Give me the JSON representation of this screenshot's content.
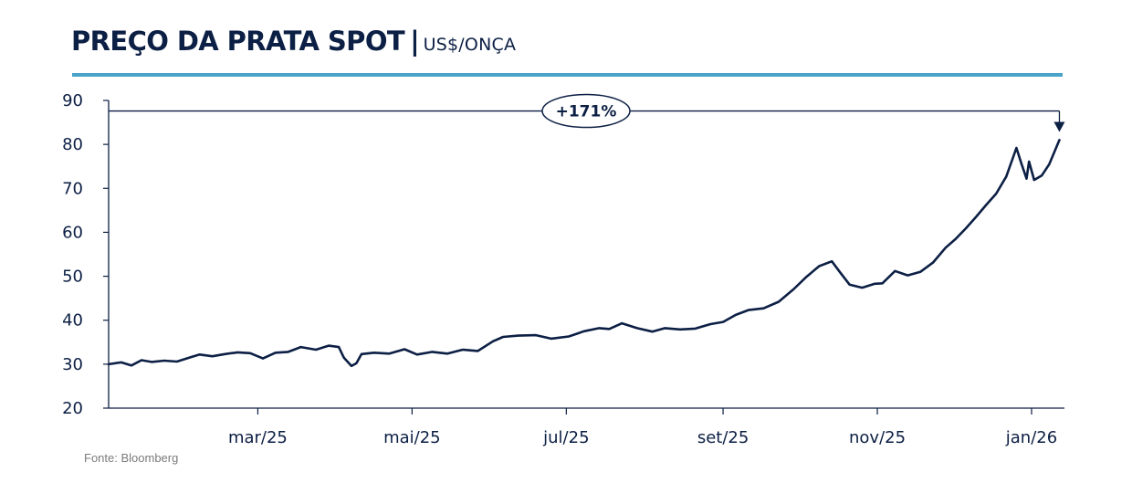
{
  "header": {
    "title": "PREÇO DA PRATA SPOT",
    "separator": "|",
    "subtitle": "US$/ONÇA"
  },
  "source": "Fonte: Bloomberg",
  "colors": {
    "line": "#0c1f44",
    "accent_rule": "#4aa3c9",
    "axis": "#0c1f44"
  },
  "chart_data": {
    "type": "line",
    "title": "PREÇO DA PRATA SPOT",
    "subtitle": "US$/ONÇA",
    "xlabel": "",
    "ylabel": "",
    "ylim": [
      20,
      90
    ],
    "yticks": [
      20,
      30,
      40,
      50,
      60,
      70,
      80,
      90
    ],
    "grid": false,
    "legend": "none",
    "x_range": [
      "2025-01-01",
      "2026-01-14"
    ],
    "xticks": [
      {
        "date": "2025-03-01",
        "label": "mar/25"
      },
      {
        "date": "2025-05-01",
        "label": "mai/25"
      },
      {
        "date": "2025-07-01",
        "label": "jul/25"
      },
      {
        "date": "2025-09-01",
        "label": "set/25"
      },
      {
        "date": "2025-11-01",
        "label": "nov/25"
      },
      {
        "date": "2026-01-01",
        "label": "jan/26"
      }
    ],
    "annotation": {
      "label": "+171%",
      "reference_level": 87.6,
      "arrow_date": "2026-01-12"
    },
    "series": [
      {
        "x": [
          "2025-01-01",
          "2025-01-06",
          "2025-01-10",
          "2025-01-14",
          "2025-01-18",
          "2025-01-23",
          "2025-01-28",
          "2025-02-02",
          "2025-02-06",
          "2025-02-11",
          "2025-02-16",
          "2025-02-21",
          "2025-02-26",
          "2025-03-03",
          "2025-03-08",
          "2025-03-13",
          "2025-03-18",
          "2025-03-24",
          "2025-03-29",
          "2025-04-02",
          "2025-04-04",
          "2025-04-07",
          "2025-04-09",
          "2025-04-11",
          "2025-04-16",
          "2025-04-22",
          "2025-04-28",
          "2025-05-03",
          "2025-05-09",
          "2025-05-15",
          "2025-05-21",
          "2025-05-27",
          "2025-06-02",
          "2025-06-06",
          "2025-06-12",
          "2025-06-19",
          "2025-06-25",
          "2025-07-02",
          "2025-07-08",
          "2025-07-14",
          "2025-07-18",
          "2025-07-23",
          "2025-07-29",
          "2025-08-04",
          "2025-08-09",
          "2025-08-15",
          "2025-08-21",
          "2025-08-27",
          "2025-09-01",
          "2025-09-06",
          "2025-09-11",
          "2025-09-17",
          "2025-09-23",
          "2025-09-29",
          "2025-10-04",
          "2025-10-09",
          "2025-10-14",
          "2025-10-17",
          "2025-10-21",
          "2025-10-26",
          "2025-10-31",
          "2025-11-03",
          "2025-11-08",
          "2025-11-13",
          "2025-11-18",
          "2025-11-23",
          "2025-11-28",
          "2025-12-02",
          "2025-12-06",
          "2025-12-10",
          "2025-12-14",
          "2025-12-18",
          "2025-12-22",
          "2025-12-26",
          "2025-12-28",
          "2025-12-30",
          "2025-12-31",
          "2026-01-02",
          "2026-01-05",
          "2026-01-08",
          "2026-01-12"
        ],
        "values": [
          30.0,
          30.4,
          29.7,
          30.9,
          30.5,
          30.8,
          30.6,
          31.5,
          32.2,
          31.8,
          32.3,
          32.7,
          32.5,
          31.3,
          32.6,
          32.8,
          33.9,
          33.3,
          34.2,
          33.9,
          31.5,
          29.6,
          30.2,
          32.3,
          32.6,
          32.4,
          33.4,
          32.2,
          32.8,
          32.4,
          33.3,
          33.0,
          35.2,
          36.2,
          36.5,
          36.6,
          35.8,
          36.3,
          37.5,
          38.2,
          38.0,
          39.3,
          38.2,
          37.4,
          38.2,
          37.9,
          38.1,
          39.1,
          39.6,
          41.2,
          42.3,
          42.7,
          44.2,
          47.1,
          49.9,
          52.3,
          53.4,
          51.1,
          48.1,
          47.4,
          48.3,
          48.4,
          51.2,
          50.2,
          51.0,
          53.1,
          56.5,
          58.5,
          60.9,
          63.5,
          66.2,
          68.8,
          72.7,
          79.2,
          75.6,
          72.2,
          76.1,
          71.9,
          72.9,
          75.5,
          81.0
        ]
      }
    ]
  }
}
